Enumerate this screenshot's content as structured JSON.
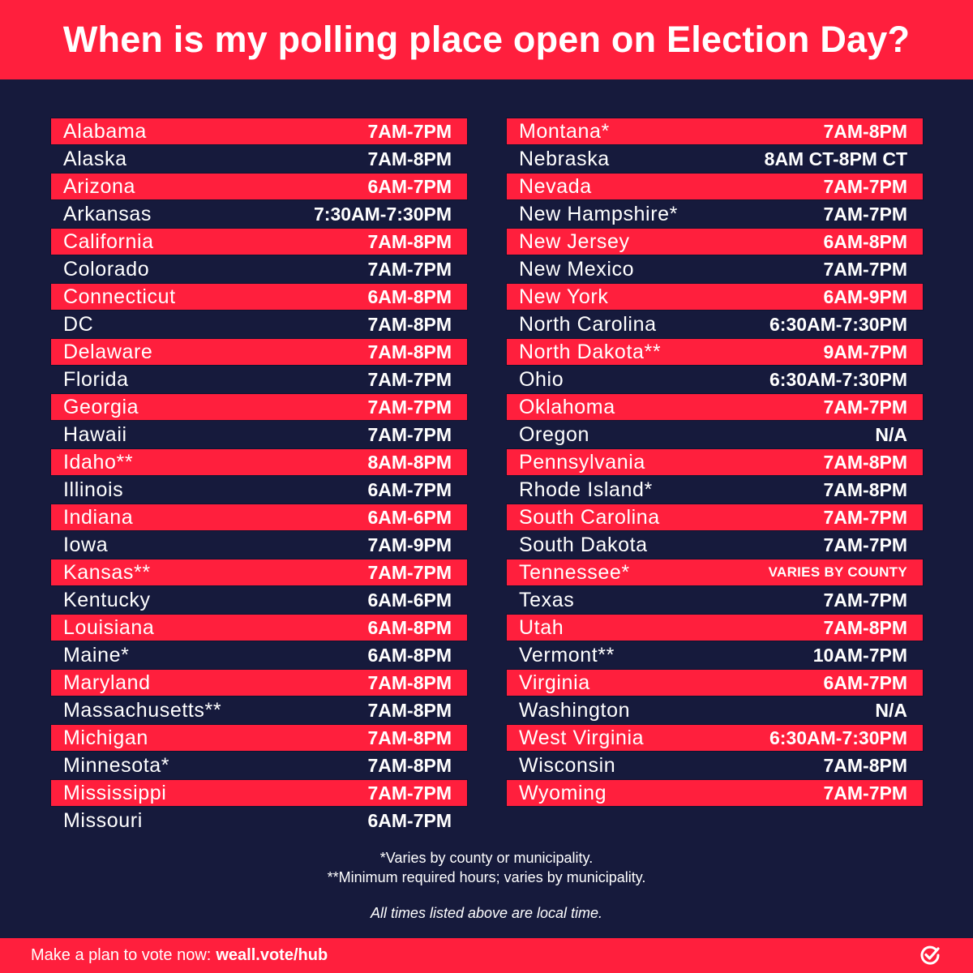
{
  "header": {
    "title": "When is my polling place open on Election Day?"
  },
  "left_column": [
    {
      "state": "Alabama",
      "hours": "7AM-7PM"
    },
    {
      "state": "Alaska",
      "hours": "7AM-8PM"
    },
    {
      "state": "Arizona",
      "hours": "6AM-7PM"
    },
    {
      "state": "Arkansas",
      "hours": "7:30AM-7:30PM"
    },
    {
      "state": "California",
      "hours": "7AM-8PM"
    },
    {
      "state": "Colorado",
      "hours": "7AM-7PM"
    },
    {
      "state": "Connecticut",
      "hours": "6AM-8PM"
    },
    {
      "state": "DC",
      "hours": "7AM-8PM"
    },
    {
      "state": "Delaware",
      "hours": "7AM-8PM"
    },
    {
      "state": "Florida",
      "hours": "7AM-7PM"
    },
    {
      "state": "Georgia",
      "hours": "7AM-7PM"
    },
    {
      "state": "Hawaii",
      "hours": "7AM-7PM"
    },
    {
      "state": "Idaho**",
      "hours": "8AM-8PM"
    },
    {
      "state": "Illinois",
      "hours": "6AM-7PM"
    },
    {
      "state": "Indiana",
      "hours": "6AM-6PM"
    },
    {
      "state": "Iowa",
      "hours": "7AM-9PM"
    },
    {
      "state": "Kansas**",
      "hours": "7AM-7PM"
    },
    {
      "state": "Kentucky",
      "hours": "6AM-6PM"
    },
    {
      "state": "Louisiana",
      "hours": "6AM-8PM"
    },
    {
      "state": "Maine*",
      "hours": "6AM-8PM"
    },
    {
      "state": "Maryland",
      "hours": "7AM-8PM"
    },
    {
      "state": "Massachusetts**",
      "hours": "7AM-8PM"
    },
    {
      "state": "Michigan",
      "hours": "7AM-8PM"
    },
    {
      "state": "Minnesota*",
      "hours": "7AM-8PM"
    },
    {
      "state": "Mississippi",
      "hours": "7AM-7PM"
    },
    {
      "state": "Missouri",
      "hours": "6AM-7PM"
    }
  ],
  "right_column": [
    {
      "state": "Montana*",
      "hours": "7AM-8PM"
    },
    {
      "state": "Nebraska",
      "hours": "8AM CT-8PM CT"
    },
    {
      "state": "Nevada",
      "hours": "7AM-7PM"
    },
    {
      "state": "New Hampshire*",
      "hours": "7AM-7PM"
    },
    {
      "state": "New Jersey",
      "hours": "6AM-8PM"
    },
    {
      "state": "New Mexico",
      "hours": "7AM-7PM"
    },
    {
      "state": "New York",
      "hours": "6AM-9PM"
    },
    {
      "state": "North Carolina",
      "hours": "6:30AM-7:30PM"
    },
    {
      "state": "North Dakota**",
      "hours": "9AM-7PM"
    },
    {
      "state": "Ohio",
      "hours": "6:30AM-7:30PM"
    },
    {
      "state": "Oklahoma",
      "hours": "7AM-7PM"
    },
    {
      "state": "Oregon",
      "hours": "N/A"
    },
    {
      "state": "Pennsylvania",
      "hours": "7AM-8PM"
    },
    {
      "state": "Rhode Island*",
      "hours": "7AM-8PM"
    },
    {
      "state": "South Carolina",
      "hours": "7AM-7PM"
    },
    {
      "state": "South Dakota",
      "hours": "7AM-7PM"
    },
    {
      "state": "Tennessee*",
      "hours": "VARIES BY COUNTY",
      "small": true
    },
    {
      "state": "Texas",
      "hours": "7AM-7PM"
    },
    {
      "state": "Utah",
      "hours": "7AM-8PM"
    },
    {
      "state": "Vermont**",
      "hours": "10AM-7PM"
    },
    {
      "state": "Virginia",
      "hours": "6AM-7PM"
    },
    {
      "state": "Washington",
      "hours": "N/A"
    },
    {
      "state": "West Virginia",
      "hours": "6:30AM-7:30PM"
    },
    {
      "state": "Wisconsin",
      "hours": "7AM-8PM"
    },
    {
      "state": "Wyoming",
      "hours": "7AM-7PM"
    }
  ],
  "notes": {
    "single_asterisk": "*Varies by county or municipality.",
    "double_asterisk": "**Minimum required hours; varies by municipality.",
    "local_time": "All times listed above are local time."
  },
  "footer": {
    "cta_text": "Make a plan to vote now:",
    "url": "weall.vote/hub",
    "logo_icon": "checkmark-circle-icon"
  },
  "colors": {
    "accent": "#ff1f3d",
    "background": "#161a3c",
    "text": "#ffffff"
  }
}
